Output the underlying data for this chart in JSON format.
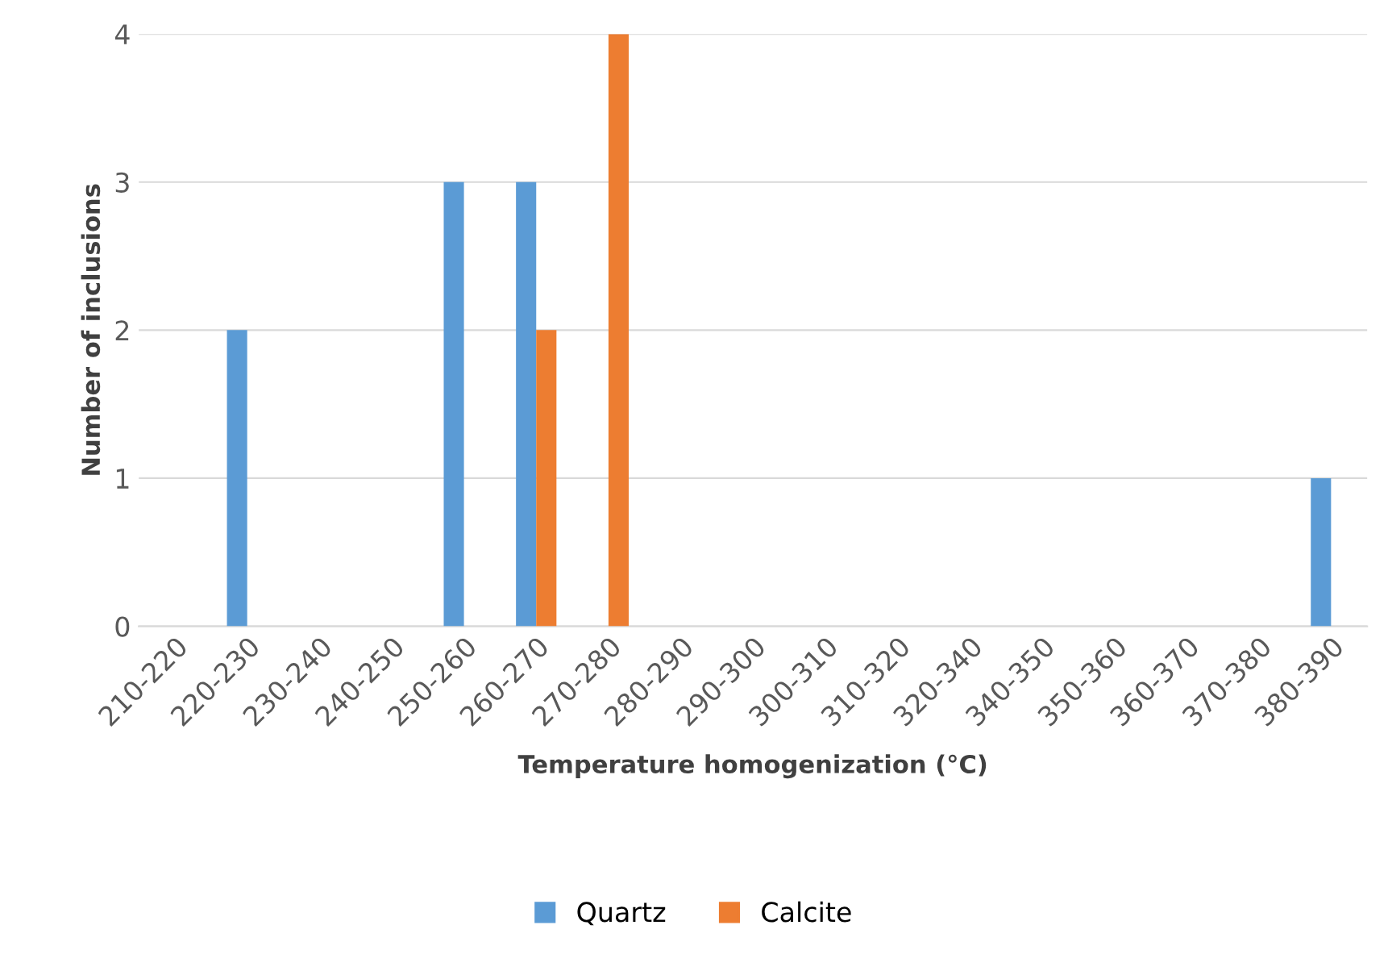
{
  "chart_data": {
    "type": "bar",
    "xlabel": "Temperature homogenization (°C)",
    "ylabel": "Number of inclusions",
    "categories": [
      "210-220",
      "220-230",
      "230-240",
      "240-250",
      "250-260",
      "260-270",
      "270-280",
      "280-290",
      "290-300",
      "300-310",
      "310-320",
      "320-340",
      "340-350",
      "350-360",
      "360-370",
      "370-380",
      "380-390"
    ],
    "series": [
      {
        "name": "Quartz",
        "color": "#5b9bd5",
        "values": [
          0,
          2,
          0,
          0,
          3,
          3,
          0,
          0,
          0,
          0,
          0,
          0,
          0,
          0,
          0,
          0,
          1
        ]
      },
      {
        "name": "Calcite",
        "color": "#ed7d31",
        "values": [
          0,
          0,
          0,
          0,
          0,
          2,
          4,
          0,
          0,
          0,
          0,
          0,
          0,
          0,
          0,
          0,
          0
        ]
      }
    ],
    "ylim": [
      0,
      4
    ],
    "yticks": [
      0,
      1,
      2,
      3,
      4
    ],
    "grid": "y",
    "legend": "bottom"
  }
}
